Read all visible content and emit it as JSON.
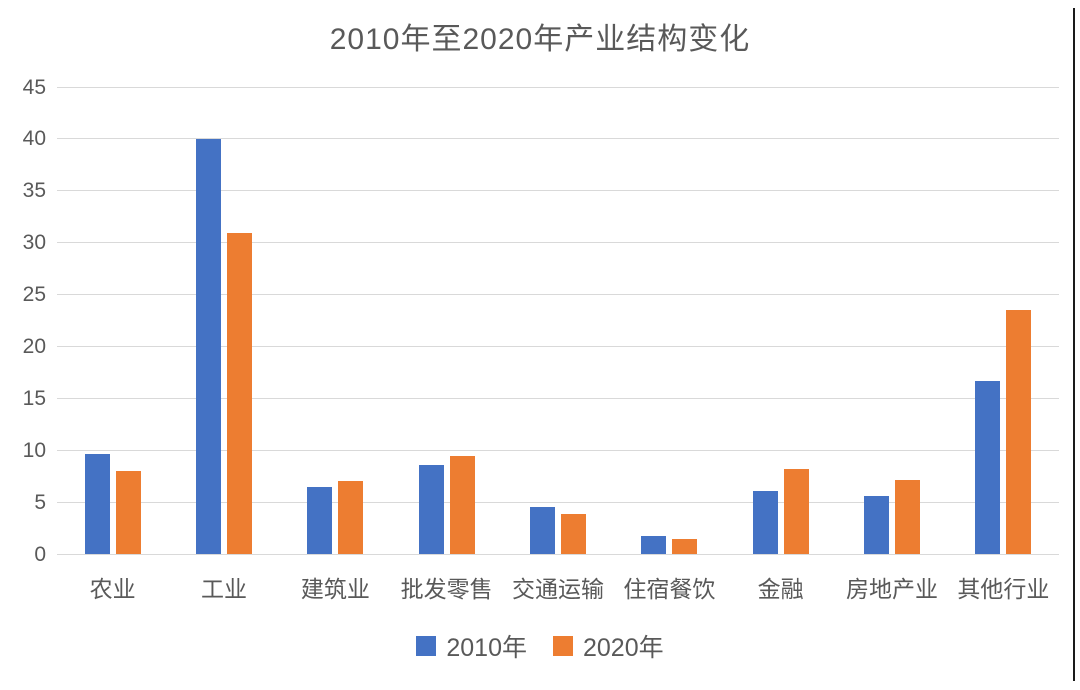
{
  "page": {
    "background_color": "#ffffff",
    "right_border_color": "#1a1a1a"
  },
  "title": "2010年至2020年产业结构变化",
  "chart_data": {
    "type": "bar",
    "title": "2010年至2020年产业结构变化",
    "categories": [
      "农业",
      "工业",
      "建筑业",
      "批发零售",
      "交通运输",
      "住宿餐饮",
      "金融",
      "房地产业",
      "其他行业"
    ],
    "series": [
      {
        "name": "2010年",
        "color": "#4472C4",
        "values": [
          9.6,
          40,
          6.5,
          8.6,
          4.5,
          1.7,
          6.1,
          5.6,
          16.7
        ]
      },
      {
        "name": "2020年",
        "color": "#ED7D31",
        "values": [
          8.0,
          30.9,
          7.0,
          9.4,
          3.9,
          1.4,
          8.2,
          7.1,
          23.5
        ]
      }
    ],
    "xlabel": "",
    "ylabel": "",
    "ylim": [
      0,
      45
    ],
    "yticks": [
      0,
      5,
      10,
      15,
      20,
      25,
      30,
      35,
      40,
      45
    ],
    "grid": "horizontal",
    "gridline_color": "#d9d9d9",
    "text_color": "#595959",
    "legend_position": "bottom"
  }
}
